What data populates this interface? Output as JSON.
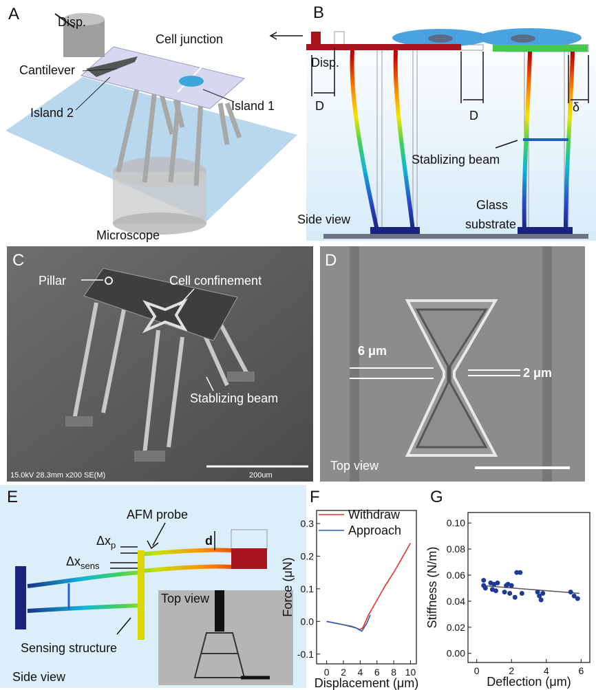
{
  "panels": {
    "A": {
      "label": "A",
      "disp": "Disp.",
      "cell_junction": "Cell junction",
      "cantilever": "Cantilever",
      "island2": "Island 2",
      "island1": "Island 1",
      "microscope": "Microscope"
    },
    "B": {
      "label": "B",
      "disp": "Disp.",
      "d1": "D",
      "d2": "D",
      "delta": "δ",
      "stabilizing_beam": "Stablizing beam",
      "side_view": "Side view",
      "glass_substrate": [
        "Glass",
        "substrate"
      ]
    },
    "C": {
      "label": "C",
      "pillar": "Pillar",
      "cell_confinement": "Cell confinement",
      "stabilizing_beam": "Stablizing beam",
      "sem_info": "15.0kV 28.3mm x200 SE(M)",
      "scale_bar": "200um"
    },
    "D": {
      "label": "D",
      "width_6": "6 μm",
      "width_2": "2 μm",
      "top_view": "Top view"
    },
    "E": {
      "label": "E",
      "afm_probe": "AFM probe",
      "dxp": {
        "base": "Δx",
        "sub": "p"
      },
      "dxsens": {
        "base": "Δx",
        "sub": "sens"
      },
      "d": "d",
      "top_view": "Top view",
      "sensing_structure": "Sensing structure",
      "side_view": "Side view"
    }
  },
  "chart_data": [
    {
      "type": "line",
      "panel_label": "F",
      "xlabel": "Displacement (μm)",
      "ylabel": "Force (μN)",
      "xlim": [
        -1.2,
        10.7
      ],
      "ylim": [
        -0.13,
        0.34
      ],
      "xticks": [
        0,
        2,
        4,
        6,
        8,
        10
      ],
      "yticks": [
        -0.1,
        {
          "value": 0,
          "label": "0.0"
        },
        0.1,
        0.2,
        0.3
      ],
      "legend": "upper left",
      "series": [
        {
          "name": "Withdraw",
          "color": "#e8302a",
          "x": [
            0,
            1,
            2,
            3,
            4,
            4.3,
            5,
            6,
            7,
            8,
            9,
            10
          ],
          "values": [
            0.0,
            -0.005,
            -0.01,
            -0.015,
            -0.025,
            -0.02,
            0.02,
            0.065,
            0.11,
            0.15,
            0.195,
            0.24
          ]
        },
        {
          "name": "Approach",
          "color": "#2a5bb0",
          "x": [
            0,
            2,
            3.5,
            4.2,
            4.8,
            5.2
          ],
          "values": [
            0.0,
            -0.01,
            -0.02,
            -0.03,
            -0.005,
            0.02
          ]
        }
      ]
    },
    {
      "type": "scatter",
      "panel_label": "G",
      "xlabel": "Deflection (μm)",
      "ylabel": "Stiffness (N/m)",
      "xlim": [
        -0.5,
        6.5
      ],
      "ylim": [
        -0.007,
        0.108
      ],
      "xticks": [
        0,
        2,
        4,
        6
      ],
      "yticks": [
        {
          "value": 0,
          "label": "0.00"
        },
        0.02,
        0.04,
        0.06,
        0.08,
        {
          "value": 0.1,
          "label": "0.10"
        }
      ],
      "color": "#1f3a93",
      "x": [
        0.4,
        0.4,
        0.5,
        0.8,
        0.9,
        1.0,
        1.1,
        1.2,
        1.6,
        1.7,
        1.8,
        1.9,
        2.0,
        2.2,
        2.3,
        2.5,
        2.6,
        3.5,
        3.6,
        3.7,
        3.8,
        5.4,
        5.6,
        5.8
      ],
      "values": [
        0.056,
        0.052,
        0.05,
        0.054,
        0.049,
        0.053,
        0.048,
        0.054,
        0.047,
        0.052,
        0.053,
        0.046,
        0.052,
        0.043,
        0.062,
        0.062,
        0.046,
        0.047,
        0.044,
        0.041,
        0.046,
        0.047,
        0.044,
        0.042
      ],
      "fit_line": {
        "color": "#555555",
        "x": [
          0.3,
          5.9
        ],
        "values": [
          0.052,
          0.046
        ]
      }
    }
  ]
}
